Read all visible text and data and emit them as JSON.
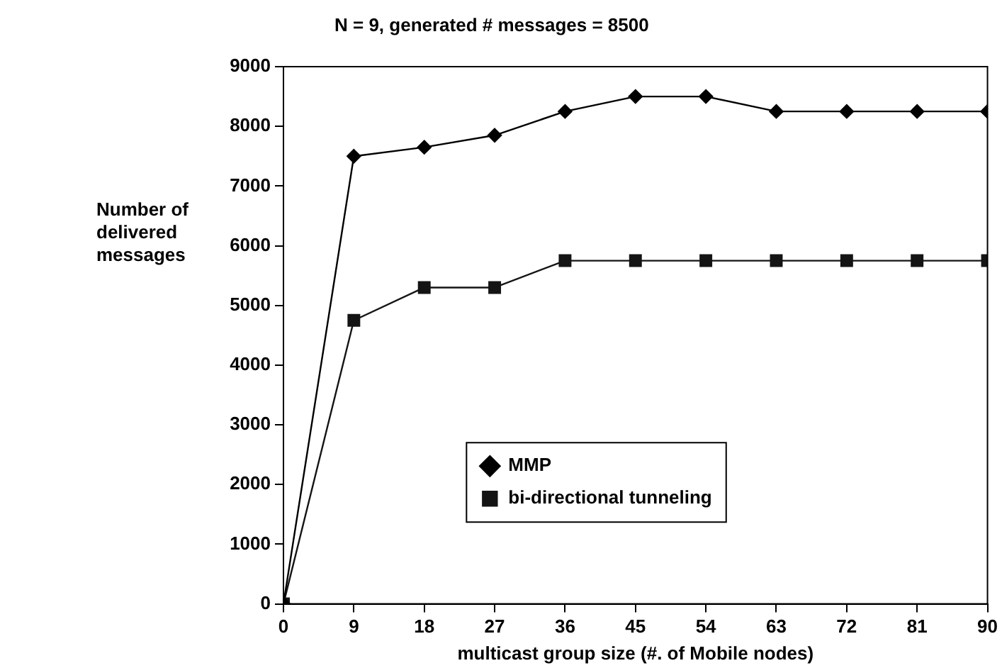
{
  "chart_data": {
    "type": "line",
    "title": "N = 9, generated # messages = 8500",
    "xlabel": "multicast group size (#. of Mobile nodes)",
    "ylabel": "Number of delivered messages",
    "x": [
      0,
      9,
      18,
      27,
      36,
      45,
      54,
      63,
      72,
      81,
      90
    ],
    "series": [
      {
        "name": "MMP",
        "color": "#000000",
        "marker": "diamond",
        "values": [
          0,
          7500,
          7650,
          7850,
          8250,
          8500,
          8500,
          8250,
          8250,
          8250,
          8250
        ]
      },
      {
        "name": "bi-directional tunneling",
        "color": "#141414",
        "marker": "square",
        "values": [
          0,
          4750,
          5300,
          5300,
          5750,
          5750,
          5750,
          5750,
          5750,
          5750,
          5750
        ]
      }
    ],
    "xlim": [
      0,
      90
    ],
    "xticks": [
      0,
      9,
      18,
      27,
      36,
      45,
      54,
      63,
      72,
      81,
      90
    ],
    "ylim": [
      0,
      9000
    ],
    "yticks": [
      0,
      1000,
      2000,
      3000,
      4000,
      5000,
      6000,
      7000,
      8000,
      9000
    ],
    "grid": false,
    "legend": "bottom",
    "line_style": "solid"
  }
}
